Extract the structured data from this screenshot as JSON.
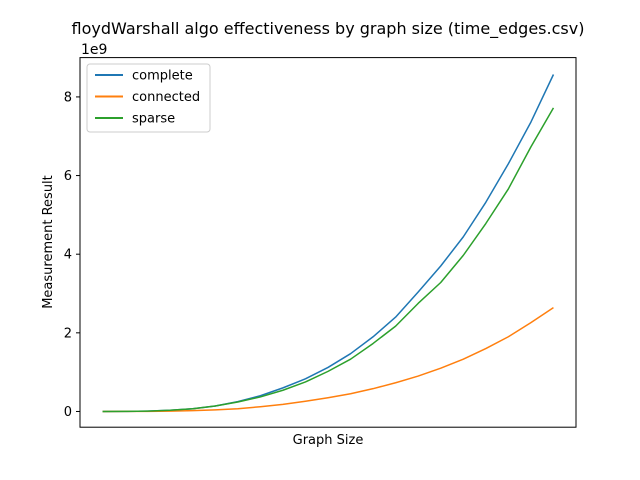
{
  "chart_data": {
    "type": "line",
    "title": "floydWarshall algo effectiveness by graph size (time_edges.csv)",
    "xlabel": "Graph Size",
    "ylabel": "Measurement Result",
    "y_exponent_label": "1e9",
    "x": [
      1,
      2,
      3,
      4,
      5,
      6,
      7,
      8,
      9,
      10,
      11,
      12,
      13,
      14,
      15,
      16,
      17,
      18,
      19,
      20,
      21
    ],
    "xlim": [
      0.0,
      22.0
    ],
    "ylim": [
      -0.4,
      9.0
    ],
    "y_ticks": [
      0,
      2,
      4,
      6,
      8
    ],
    "y_tick_labels": [
      "0",
      "2",
      "4",
      "6",
      "8"
    ],
    "grid": false,
    "legend_position": "upper-left",
    "series": [
      {
        "name": "complete",
        "color": "#1f77b4",
        "values": [
          0.0,
          0.002,
          0.01,
          0.03,
          0.07,
          0.14,
          0.25,
          0.4,
          0.6,
          0.83,
          1.12,
          1.47,
          1.9,
          2.4,
          3.04,
          3.7,
          4.44,
          5.32,
          6.3,
          7.36,
          8.57
        ]
      },
      {
        "name": "connected",
        "color": "#ff7f0e",
        "values": [
          0.0,
          0.001,
          0.004,
          0.01,
          0.02,
          0.04,
          0.07,
          0.12,
          0.18,
          0.26,
          0.35,
          0.45,
          0.58,
          0.73,
          0.9,
          1.1,
          1.33,
          1.6,
          1.9,
          2.26,
          2.64
        ]
      },
      {
        "name": "sparse",
        "color": "#2ca02c",
        "values": [
          0.0,
          0.002,
          0.01,
          0.03,
          0.07,
          0.14,
          0.24,
          0.37,
          0.54,
          0.75,
          1.02,
          1.33,
          1.73,
          2.17,
          2.75,
          3.28,
          3.97,
          4.78,
          5.66,
          6.73,
          7.72
        ]
      }
    ]
  }
}
